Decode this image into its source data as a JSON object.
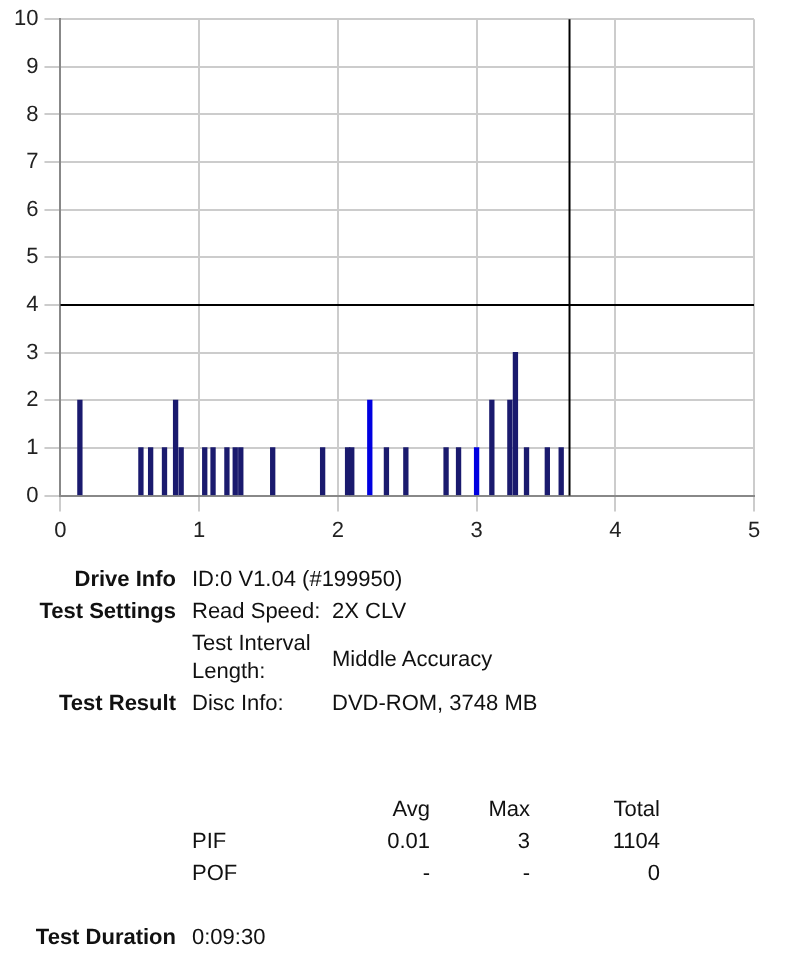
{
  "chart_data": {
    "type": "bar",
    "x": [
      0.14,
      0.58,
      0.65,
      0.75,
      0.83,
      0.87,
      1.04,
      1.1,
      1.2,
      1.26,
      1.3,
      1.53,
      1.89,
      2.07,
      2.1,
      2.23,
      2.35,
      2.49,
      2.78,
      2.87,
      3.0,
      3.11,
      3.24,
      3.28,
      3.36,
      3.51,
      3.61
    ],
    "values": [
      2,
      1,
      1,
      1,
      2,
      1,
      1,
      1,
      1,
      1,
      1,
      1,
      1,
      1,
      1,
      2,
      1,
      1,
      1,
      1,
      1,
      2,
      2,
      3,
      1,
      1,
      1
    ],
    "colors": [
      "#1a1a6e",
      "#1a1a6e",
      "#1a1a6e",
      "#1a1a6e",
      "#1a1a6e",
      "#1a1a6e",
      "#1a1a6e",
      "#1a1a6e",
      "#1a1a6e",
      "#1a1a6e",
      "#1a1a6e",
      "#1a1a6e",
      "#1a1a6e",
      "#1a1a6e",
      "#1a1a6e",
      "#0000e0",
      "#1a1a6e",
      "#1a1a6e",
      "#1a1a6e",
      "#1a1a6e",
      "#0000e0",
      "#1a1a6e",
      "#1a1a6e",
      "#1a1a6e",
      "#1a1a6e",
      "#1a1a6e",
      "#1a1a6e"
    ],
    "xlim": [
      0,
      5
    ],
    "xticks": [
      0,
      1,
      2,
      3,
      4,
      5
    ],
    "ylim": [
      0,
      10
    ],
    "yticks": [
      0,
      1,
      2,
      3,
      4,
      5,
      6,
      7,
      8,
      9,
      10
    ],
    "grid": true,
    "ref_lines": [
      {
        "axis": "y",
        "value": 4,
        "color": "#000000"
      },
      {
        "axis": "x",
        "value": 3.67,
        "color": "#000000"
      }
    ],
    "annotations": [
      "Drive Info",
      "ID:0 V1.04 (#199950)",
      "Test Settings",
      "Read Speed:",
      "2X CLV",
      "Test Interval Length:",
      "Middle Accuracy",
      "Test Result",
      "Disc Info:",
      "DVD-ROM, 3748 MB",
      "Avg",
      "Max",
      "Total",
      "PIF",
      "0.01",
      "3",
      "1104",
      "POF",
      "-",
      "-",
      "0",
      "Test Duration",
      "0:09:30"
    ]
  }
}
